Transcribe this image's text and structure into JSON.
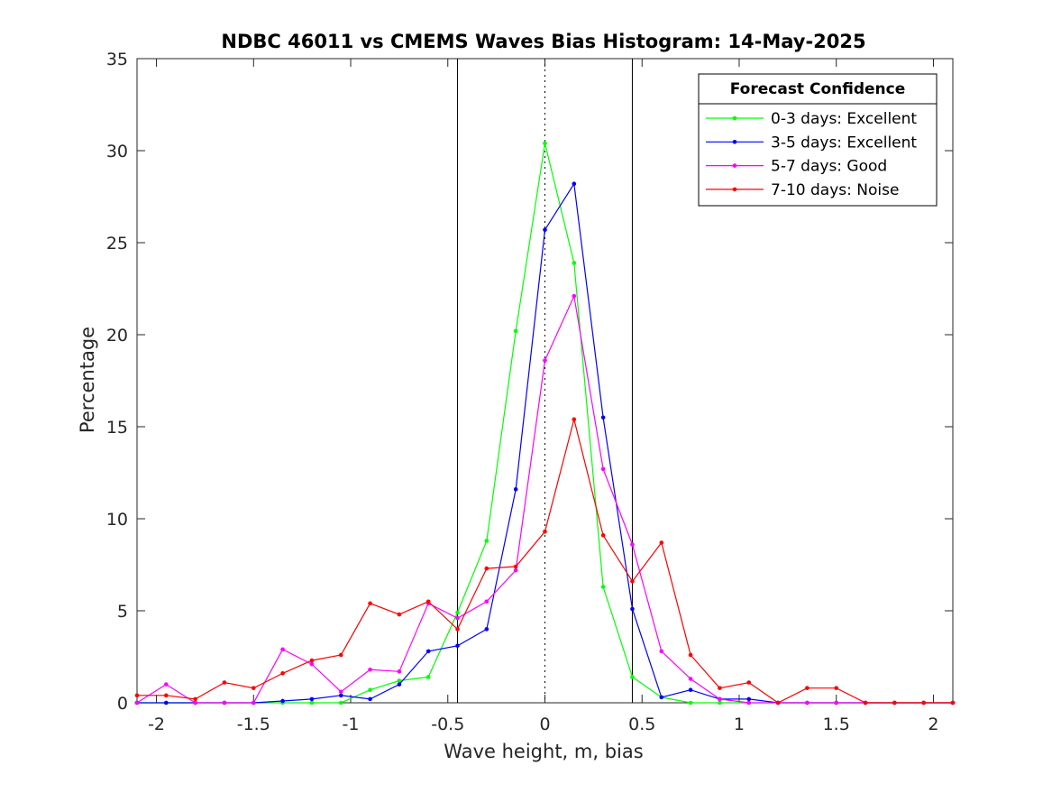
{
  "chart_data": {
    "type": "line",
    "title": "NDBC 46011 vs CMEMS Waves Bias Histogram: 14-May-2025",
    "xlabel": "Wave height, m, bias",
    "ylabel": "Percentage",
    "xlim": [
      -2.1,
      2.1
    ],
    "ylim": [
      0,
      35
    ],
    "xticks": [
      -2,
      -1.5,
      -1,
      -0.5,
      0,
      0.5,
      1,
      1.5,
      2
    ],
    "xtick_labels": [
      "-2",
      "-1.5",
      "-1",
      "-0.5",
      "0",
      "0.5",
      "1",
      "1.5",
      "2"
    ],
    "yticks": [
      0,
      5,
      10,
      15,
      20,
      25,
      30,
      35
    ],
    "ytick_labels": [
      "0",
      "5",
      "10",
      "15",
      "20",
      "25",
      "30",
      "35"
    ],
    "grid": false,
    "vlines_solid": [
      -0.45,
      0.45
    ],
    "vline_dotted": 0,
    "legend": {
      "title": "Forecast Confidence",
      "position": "top-right"
    },
    "x": [
      -2.1,
      -1.95,
      -1.8,
      -1.65,
      -1.5,
      -1.35,
      -1.2,
      -1.05,
      -0.9,
      -0.75,
      -0.6,
      -0.45,
      -0.3,
      -0.15,
      0,
      0.15,
      0.3,
      0.45,
      0.6,
      0.75,
      0.9,
      1.05,
      1.2,
      1.35,
      1.5,
      1.65,
      1.8,
      1.95,
      2.1
    ],
    "series": [
      {
        "name": "0-3 days: Excellent",
        "color": "#00ff00",
        "values": [
          0,
          0,
          0,
          0,
          0,
          0,
          0,
          0,
          0.7,
          1.2,
          1.4,
          4.9,
          8.8,
          20.2,
          30.4,
          23.9,
          6.3,
          1.4,
          0.3,
          0,
          0,
          0,
          0,
          0,
          0,
          0,
          0,
          0,
          0
        ]
      },
      {
        "name": "3-5 days: Excellent",
        "color": "#0000ff",
        "values": [
          0,
          0,
          0,
          0,
          0,
          0.1,
          0.2,
          0.4,
          0.2,
          1.0,
          2.8,
          3.1,
          4.0,
          11.6,
          25.7,
          28.2,
          15.5,
          5.1,
          0.3,
          0.7,
          0.2,
          0.2,
          0,
          0,
          0,
          0,
          0,
          0,
          0
        ]
      },
      {
        "name": "5-7 days: Good",
        "color": "#ff00ff",
        "values": [
          0,
          1.0,
          0,
          0,
          0,
          2.9,
          2.1,
          0.6,
          1.8,
          1.7,
          5.4,
          4.6,
          5.5,
          7.2,
          18.6,
          22.1,
          12.7,
          8.6,
          2.8,
          1.3,
          0.2,
          0,
          0,
          0,
          0,
          0,
          0,
          0,
          0
        ]
      },
      {
        "name": "7-10 days: Noise",
        "color": "#ff0000",
        "values": [
          0.4,
          0.4,
          0.2,
          1.1,
          0.8,
          1.6,
          2.3,
          2.6,
          5.4,
          4.8,
          5.5,
          4.0,
          7.3,
          7.4,
          9.3,
          15.4,
          9.1,
          6.6,
          8.7,
          2.6,
          0.8,
          1.1,
          0,
          0.8,
          0.8,
          0,
          0,
          0,
          0
        ]
      }
    ]
  }
}
